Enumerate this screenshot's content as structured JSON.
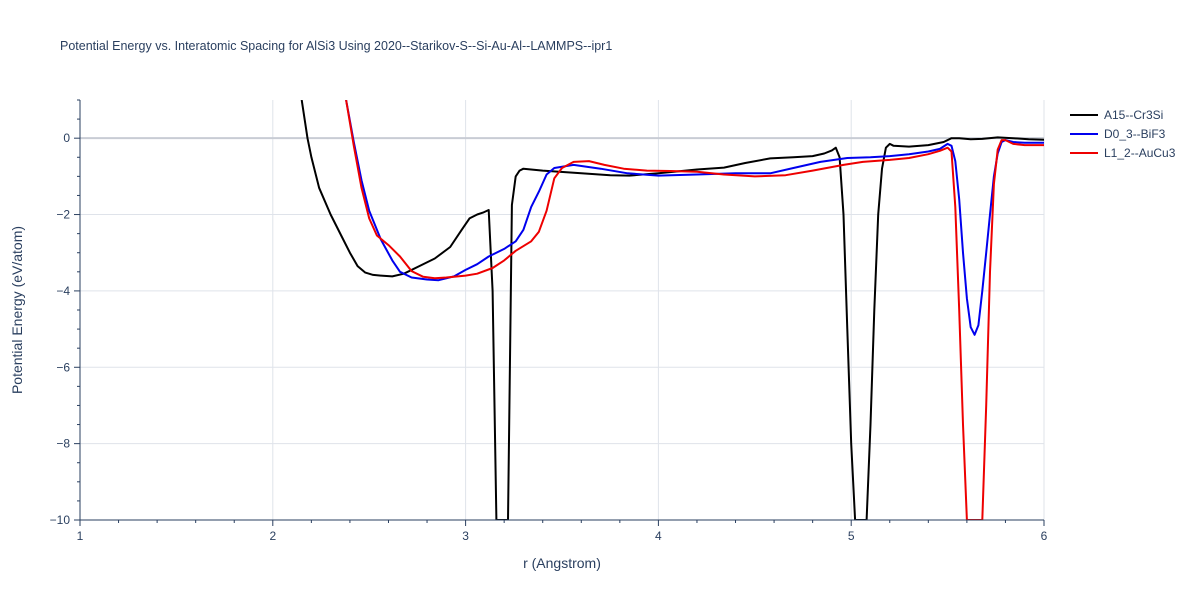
{
  "chart_data": {
    "type": "line",
    "title": "Potential Energy vs. Interatomic Spacing for AlSi3 Using 2020--Starikov-S--Si-Au-Al--LAMMPS--ipr1",
    "xlabel": "r (Angstrom)",
    "ylabel": "Potential Energy (eV/atom)",
    "xlim": [
      1,
      6
    ],
    "ylim": [
      -10,
      1
    ],
    "xticks": [
      1,
      2,
      3,
      4,
      5,
      6
    ],
    "xtick_labels": [
      "1",
      "2",
      "3",
      "4",
      "5",
      "6"
    ],
    "yticks": [
      -10,
      -8,
      -6,
      -4,
      -2,
      0
    ],
    "ytick_labels": [
      "−10",
      "−8",
      "−6",
      "−4",
      "−2",
      "0"
    ],
    "grid": true,
    "legend_position": "top-right",
    "series": [
      {
        "name": "A15--Cr3Si",
        "color": "#000000",
        "points": [
          [
            2.15,
            1.0
          ],
          [
            2.18,
            0.0
          ],
          [
            2.2,
            -0.5
          ],
          [
            2.24,
            -1.3
          ],
          [
            2.3,
            -2.0
          ],
          [
            2.36,
            -2.6
          ],
          [
            2.4,
            -3.0
          ],
          [
            2.44,
            -3.35
          ],
          [
            2.48,
            -3.52
          ],
          [
            2.52,
            -3.58
          ],
          [
            2.56,
            -3.6
          ],
          [
            2.62,
            -3.62
          ],
          [
            2.68,
            -3.55
          ],
          [
            2.76,
            -3.35
          ],
          [
            2.84,
            -3.15
          ],
          [
            2.92,
            -2.85
          ],
          [
            2.98,
            -2.4
          ],
          [
            3.02,
            -2.1
          ],
          [
            3.06,
            -2.0
          ],
          [
            3.09,
            -1.95
          ],
          [
            3.12,
            -1.88
          ],
          [
            3.14,
            -4.0
          ],
          [
            3.16,
            -10.0
          ],
          [
            3.22,
            -10.0
          ],
          [
            3.23,
            -6.0
          ],
          [
            3.24,
            -1.75
          ],
          [
            3.26,
            -1.0
          ],
          [
            3.28,
            -0.85
          ],
          [
            3.3,
            -0.8
          ],
          [
            3.4,
            -0.85
          ],
          [
            3.6,
            -0.92
          ],
          [
            3.75,
            -0.97
          ],
          [
            3.85,
            -0.98
          ],
          [
            4.0,
            -0.92
          ],
          [
            4.2,
            -0.82
          ],
          [
            4.34,
            -0.77
          ],
          [
            4.45,
            -0.65
          ],
          [
            4.58,
            -0.53
          ],
          [
            4.7,
            -0.5
          ],
          [
            4.8,
            -0.47
          ],
          [
            4.86,
            -0.4
          ],
          [
            4.9,
            -0.32
          ],
          [
            4.92,
            -0.25
          ],
          [
            4.94,
            -0.5
          ],
          [
            4.96,
            -2.0
          ],
          [
            4.98,
            -5.0
          ],
          [
            5.0,
            -8.0
          ],
          [
            5.02,
            -10.0
          ],
          [
            5.08,
            -10.0
          ],
          [
            5.1,
            -7.5
          ],
          [
            5.12,
            -4.5
          ],
          [
            5.14,
            -2.0
          ],
          [
            5.16,
            -0.8
          ],
          [
            5.18,
            -0.25
          ],
          [
            5.2,
            -0.15
          ],
          [
            5.22,
            -0.2
          ],
          [
            5.3,
            -0.22
          ],
          [
            5.4,
            -0.18
          ],
          [
            5.48,
            -0.1
          ],
          [
            5.52,
            0.0
          ],
          [
            5.56,
            0.0
          ],
          [
            5.62,
            -0.03
          ],
          [
            5.68,
            -0.02
          ],
          [
            5.76,
            0.02
          ],
          [
            5.84,
            0.0
          ],
          [
            5.92,
            -0.03
          ],
          [
            6.0,
            -0.04
          ]
        ]
      },
      {
        "name": "D0_3--BiF3",
        "color": "#0000ee",
        "points": [
          [
            2.38,
            1.0
          ],
          [
            2.42,
            -0.1
          ],
          [
            2.46,
            -1.1
          ],
          [
            2.5,
            -1.9
          ],
          [
            2.56,
            -2.65
          ],
          [
            2.62,
            -3.2
          ],
          [
            2.66,
            -3.5
          ],
          [
            2.72,
            -3.65
          ],
          [
            2.8,
            -3.7
          ],
          [
            2.86,
            -3.72
          ],
          [
            2.94,
            -3.62
          ],
          [
            3.0,
            -3.45
          ],
          [
            3.06,
            -3.3
          ],
          [
            3.12,
            -3.1
          ],
          [
            3.2,
            -2.9
          ],
          [
            3.26,
            -2.7
          ],
          [
            3.3,
            -2.4
          ],
          [
            3.34,
            -1.8
          ],
          [
            3.38,
            -1.4
          ],
          [
            3.42,
            -0.95
          ],
          [
            3.46,
            -0.78
          ],
          [
            3.56,
            -0.7
          ],
          [
            3.7,
            -0.8
          ],
          [
            3.84,
            -0.92
          ],
          [
            4.0,
            -0.98
          ],
          [
            4.2,
            -0.95
          ],
          [
            4.4,
            -0.92
          ],
          [
            4.58,
            -0.92
          ],
          [
            4.7,
            -0.78
          ],
          [
            4.84,
            -0.62
          ],
          [
            4.98,
            -0.52
          ],
          [
            5.1,
            -0.5
          ],
          [
            5.2,
            -0.47
          ],
          [
            5.3,
            -0.42
          ],
          [
            5.4,
            -0.35
          ],
          [
            5.46,
            -0.28
          ],
          [
            5.5,
            -0.15
          ],
          [
            5.52,
            -0.2
          ],
          [
            5.54,
            -0.6
          ],
          [
            5.56,
            -1.6
          ],
          [
            5.58,
            -3.0
          ],
          [
            5.6,
            -4.2
          ],
          [
            5.62,
            -4.95
          ],
          [
            5.64,
            -5.15
          ],
          [
            5.66,
            -4.9
          ],
          [
            5.68,
            -4.0
          ],
          [
            5.7,
            -3.0
          ],
          [
            5.72,
            -2.0
          ],
          [
            5.74,
            -1.0
          ],
          [
            5.76,
            -0.4
          ],
          [
            5.78,
            -0.1
          ],
          [
            5.8,
            -0.05
          ],
          [
            5.84,
            -0.1
          ],
          [
            5.9,
            -0.12
          ],
          [
            6.0,
            -0.12
          ]
        ]
      },
      {
        "name": "L1_2--AuCu3",
        "color": "#ee0000",
        "points": [
          [
            2.38,
            1.0
          ],
          [
            2.42,
            -0.2
          ],
          [
            2.46,
            -1.3
          ],
          [
            2.5,
            -2.1
          ],
          [
            2.54,
            -2.55
          ],
          [
            2.6,
            -2.8
          ],
          [
            2.66,
            -3.1
          ],
          [
            2.72,
            -3.48
          ],
          [
            2.78,
            -3.63
          ],
          [
            2.84,
            -3.67
          ],
          [
            2.9,
            -3.65
          ],
          [
            3.0,
            -3.6
          ],
          [
            3.06,
            -3.55
          ],
          [
            3.14,
            -3.4
          ],
          [
            3.2,
            -3.2
          ],
          [
            3.26,
            -2.95
          ],
          [
            3.34,
            -2.7
          ],
          [
            3.38,
            -2.45
          ],
          [
            3.42,
            -1.9
          ],
          [
            3.46,
            -1.05
          ],
          [
            3.5,
            -0.78
          ],
          [
            3.56,
            -0.62
          ],
          [
            3.64,
            -0.6
          ],
          [
            3.72,
            -0.7
          ],
          [
            3.82,
            -0.8
          ],
          [
            3.94,
            -0.85
          ],
          [
            4.06,
            -0.86
          ],
          [
            4.2,
            -0.88
          ],
          [
            4.34,
            -0.95
          ],
          [
            4.5,
            -1.0
          ],
          [
            4.66,
            -0.97
          ],
          [
            4.8,
            -0.85
          ],
          [
            4.96,
            -0.7
          ],
          [
            5.06,
            -0.62
          ],
          [
            5.2,
            -0.57
          ],
          [
            5.3,
            -0.52
          ],
          [
            5.4,
            -0.42
          ],
          [
            5.46,
            -0.33
          ],
          [
            5.5,
            -0.25
          ],
          [
            5.52,
            -0.35
          ],
          [
            5.54,
            -1.8
          ],
          [
            5.56,
            -4.5
          ],
          [
            5.58,
            -7.5
          ],
          [
            5.6,
            -10.0
          ],
          [
            5.68,
            -10.0
          ],
          [
            5.7,
            -7.0
          ],
          [
            5.72,
            -3.5
          ],
          [
            5.74,
            -1.2
          ],
          [
            5.76,
            -0.3
          ],
          [
            5.78,
            -0.05
          ],
          [
            5.8,
            -0.05
          ],
          [
            5.84,
            -0.15
          ],
          [
            5.9,
            -0.18
          ],
          [
            6.0,
            -0.18
          ]
        ]
      }
    ]
  }
}
